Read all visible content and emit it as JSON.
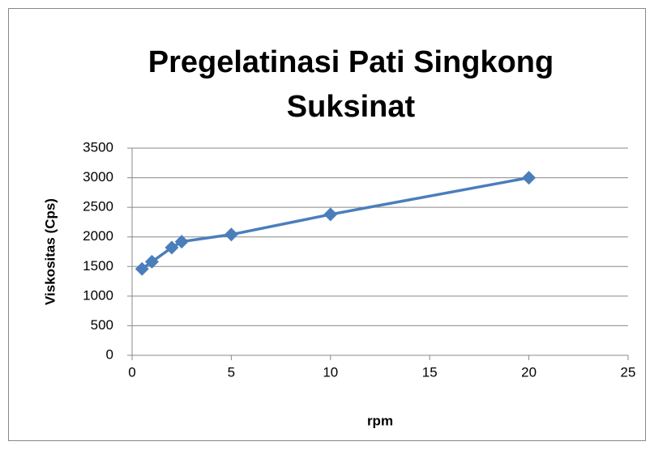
{
  "chart_data": {
    "type": "line",
    "title": "Pregelatinasi Pati Singkong Suksinat",
    "x_label": "rpm",
    "y_label": "Viskositas (Cps)",
    "series": [
      {
        "name": "Viskositas",
        "color": "#4a7ebb",
        "x": [
          0.5,
          1,
          2,
          2.5,
          5,
          10,
          20
        ],
        "values": [
          1460,
          1580,
          1820,
          1920,
          2040,
          2380,
          3000
        ]
      }
    ],
    "xlim": [
      0,
      25
    ],
    "xticks": [
      0,
      5,
      10,
      15,
      20,
      25
    ],
    "ylim": [
      0,
      3500
    ],
    "yticks": [
      0,
      500,
      1000,
      1500,
      2000,
      2500,
      3000,
      3500
    ],
    "grid": true,
    "markers": "diamond"
  }
}
